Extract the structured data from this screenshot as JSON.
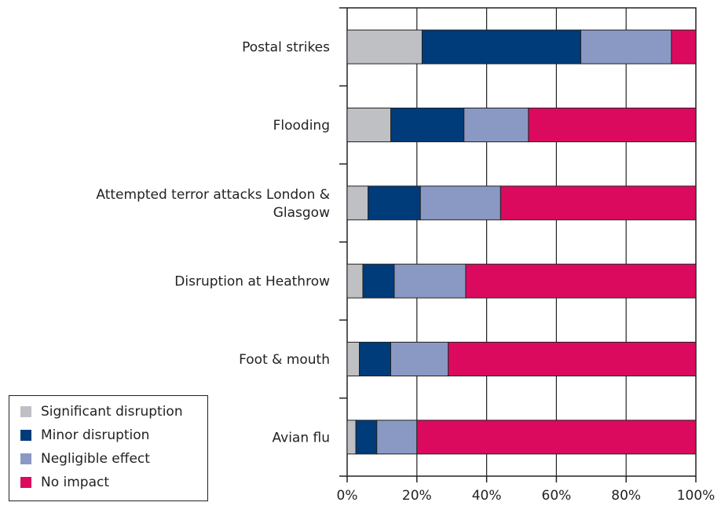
{
  "chart_data": {
    "type": "bar",
    "orientation": "horizontal",
    "stacked": true,
    "categories": [
      "Postal  strikes",
      "Flooding",
      "Attempted terror attacks London & Glasgow",
      "Disruption at Heathrow",
      "Foot & mouth",
      "Avian flu"
    ],
    "category_label_lines": [
      [
        "Postal  strikes"
      ],
      [
        "Flooding"
      ],
      [
        "Attempted terror attacks London &",
        "Glasgow"
      ],
      [
        "Disruption at Heathrow"
      ],
      [
        "Foot & mouth"
      ],
      [
        "Avian flu"
      ]
    ],
    "series": [
      {
        "name": "Significant disruption",
        "color": "#bfc0c4",
        "values": [
          21.5,
          12.5,
          6,
          4.5,
          3.5,
          2.5
        ]
      },
      {
        "name": "Minor disruption",
        "color": "#003b7a",
        "values": [
          45.5,
          21,
          15,
          9,
          9,
          6
        ]
      },
      {
        "name": "Negligible effect",
        "color": "#8a98c4",
        "values": [
          26,
          18.5,
          23,
          20.5,
          16.5,
          11.5
        ]
      },
      {
        "name": "No impact",
        "color": "#dc0a5f",
        "values": [
          7,
          48,
          56,
          66,
          71,
          80
        ]
      }
    ],
    "xlim": [
      0,
      100
    ],
    "xticks": [
      "0%",
      "20%",
      "40%",
      "60%",
      "80%",
      "100%"
    ],
    "xtick_values": [
      0,
      20,
      40,
      60,
      80,
      100
    ],
    "grid": true,
    "legend_position": "bottom-left",
    "title": "",
    "xlabel": "",
    "ylabel": ""
  }
}
